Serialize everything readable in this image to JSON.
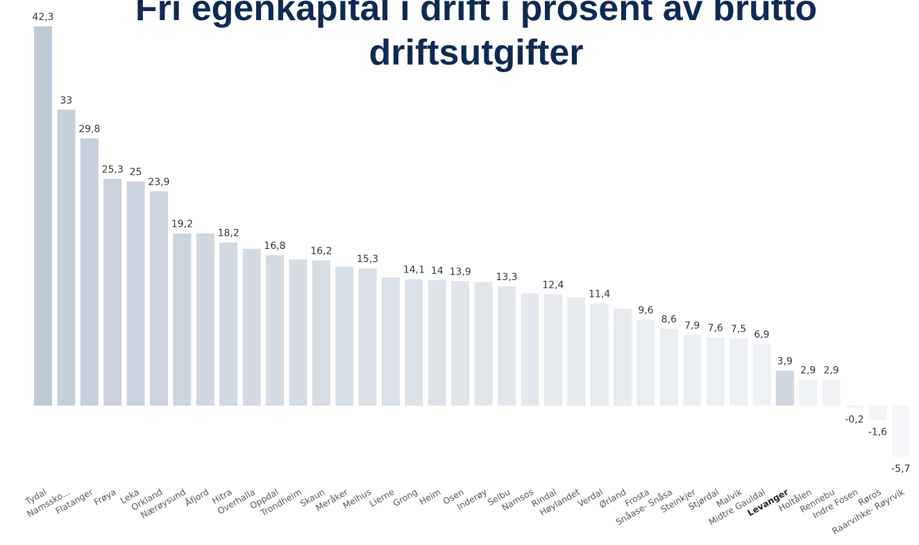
{
  "chart_data": {
    "type": "bar",
    "title": "Fri egenkapital i drift i prosent av brutto driftsutgifter",
    "categories": [
      "Tydal",
      "Namssko...",
      "Flatanger",
      "Frøya",
      "Leka",
      "Orkland",
      "Nærøysund",
      "Åfjord",
      "Hitra",
      "Overhalla",
      "Oppdal",
      "Trondheim",
      "Skaun",
      "Meråker",
      "Melhus",
      "Lierne",
      "Grong",
      "Heim",
      "Osen",
      "Inderøy",
      "Selbu",
      "Namsos",
      "Rindal",
      "Høylandet",
      "Verdal",
      "Ørland",
      "Frosta",
      "Snåase- Snåsa",
      "Steinkjer",
      "Stjørdal",
      "Malvik",
      "Midtre Gauldal",
      "Levanger",
      "Holtålen",
      "Rennebu",
      "Indre Fosen",
      "Røros",
      "Raarvihke- Røyrvik"
    ],
    "values": [
      42.3,
      33,
      29.8,
      25.3,
      25,
      23.9,
      19.2,
      19.2,
      18.2,
      17.5,
      16.8,
      16.3,
      16.2,
      15.5,
      15.3,
      14.3,
      14.1,
      14,
      13.9,
      13.8,
      13.3,
      12.5,
      12.4,
      12.1,
      11.4,
      10.8,
      9.6,
      8.6,
      7.9,
      7.6,
      7.5,
      6.9,
      3.9,
      2.9,
      2.9,
      -0.2,
      -1.6,
      -5.7
    ],
    "value_labels": [
      "42,3",
      "33",
      "29,8",
      "25,3",
      "25",
      "23,9",
      "19,2",
      null,
      "18,2",
      null,
      "16,8",
      null,
      "16,2",
      null,
      "15,3",
      null,
      "14,1",
      "14",
      "13,9",
      null,
      "13,3",
      null,
      "12,4",
      null,
      "11,4",
      null,
      "9,6",
      "8,6",
      "7,9",
      "7,6",
      "7,5",
      "6,9",
      "3,9",
      "2,9",
      "2,9",
      "-0,2",
      "-1,6",
      "-5,7"
    ],
    "colors": [
      "#bec9d6",
      "#c5cfda",
      "#c7d0db",
      "#c9d2dc",
      "#cad3dd",
      "#ccd4de",
      "#cdd6df",
      "#cfd7e0",
      "#d0d8e1",
      "#d2d9e2",
      "#d3dbe3",
      "#d5dce4",
      "#d6dde5",
      "#d8dee6",
      "#d9e0e7",
      "#dbe1e8",
      "#dce2e9",
      "#dee3ea",
      "#dfe5eb",
      "#e1e6ec",
      "#e2e7ed",
      "#e4e8ee",
      "#e5e9ee",
      "#e6eaef",
      "#e7ebf0",
      "#e8ecf1",
      "#e9edf1",
      "#eaeef2",
      "#ebeff3",
      "#ecf0f3",
      "#edf0f4",
      "#eef1f5",
      "#d0d7e0",
      "#eff2f6",
      "#f0f3f6",
      "#f2f4f7",
      "#f3f5f8",
      "#f4f6f9"
    ],
    "highlight_category": 32
  }
}
